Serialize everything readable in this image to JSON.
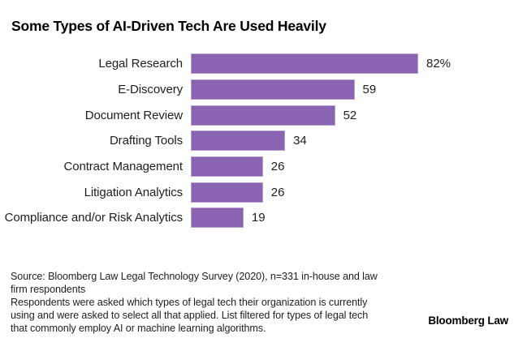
{
  "header": {
    "title": "Some Types of AI-Driven Tech Are Used Heavily"
  },
  "chart_data": {
    "type": "bar",
    "orientation": "horizontal",
    "title": "Some Types of AI-Driven Tech Are Used Heavily",
    "categories": [
      "Legal Research",
      "E-Discovery",
      "Document Review",
      "Drafting Tools",
      "Contract Management",
      "Litigation Analytics",
      "Compliance and/or Risk Analytics"
    ],
    "values": [
      82,
      59,
      52,
      34,
      26,
      26,
      19
    ],
    "value_labels": [
      "82%",
      "59",
      "52",
      "34",
      "26",
      "26",
      "19"
    ],
    "unit": "percent",
    "xlim": [
      0,
      100
    ],
    "grid": false,
    "legend": false,
    "bar_color": "#8a63b3",
    "bar_border_color": "#b39cd1",
    "text_color": "#1e1e1e"
  },
  "footer": {
    "source_lines": [
      "Source: Bloomberg Law Legal Technology Survey (2020), n=331 in-house and law",
      "firm respondents"
    ],
    "note_lines": [
      "Respondents were asked which types of legal tech their organization is currently",
      "using and were asked to select all that applied. List filtered for types of legal tech",
      "that commonly employ AI or machine learning algorithms."
    ],
    "brand": "Bloomberg Law"
  }
}
